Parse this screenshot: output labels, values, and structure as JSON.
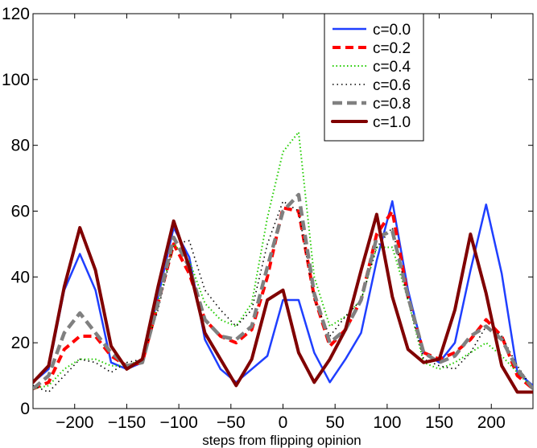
{
  "chart_data": {
    "type": "line",
    "title": "",
    "xlabel": "steps from flipping opinion",
    "ylabel": "",
    "xlim": [
      -240,
      240
    ],
    "ylim": [
      0,
      120
    ],
    "grid": false,
    "legend_position": "top-right",
    "xticks": [
      -200,
      -150,
      -100,
      -50,
      0,
      50,
      100,
      150,
      200
    ],
    "xtick_labels": [
      "−200",
      "−150",
      "−100",
      "−50",
      "0",
      "50",
      "100",
      "150",
      "200"
    ],
    "yticks": [
      0,
      20,
      40,
      60,
      80,
      100,
      120
    ],
    "ytick_labels": [
      "0",
      "20",
      "40",
      "60",
      "80",
      "100",
      "120"
    ],
    "x": [
      -240,
      -225,
      -210,
      -195,
      -180,
      -165,
      -150,
      -135,
      -120,
      -105,
      -90,
      -75,
      -60,
      -45,
      -30,
      -15,
      0,
      15,
      30,
      45,
      60,
      75,
      90,
      105,
      120,
      135,
      150,
      165,
      180,
      195,
      210,
      225,
      240
    ],
    "series": [
      {
        "name": "c=0.0",
        "color": "#1f3fff",
        "style": "solid",
        "values": [
          8,
          12,
          36,
          47,
          36,
          14,
          12,
          14,
          34,
          55,
          46,
          21,
          12,
          8,
          12,
          16,
          33,
          33,
          17,
          8,
          15,
          23,
          45,
          63,
          36,
          17,
          14,
          20,
          42,
          62,
          41,
          11,
          7
        ]
      },
      {
        "name": "c=0.2",
        "color": "#ff0000",
        "style": "dash",
        "values": [
          6,
          8,
          18,
          22,
          22,
          16,
          13,
          14,
          32,
          50,
          41,
          27,
          22,
          20,
          24,
          40,
          61,
          60,
          34,
          19,
          24,
          33,
          53,
          60,
          34,
          17,
          15,
          17,
          21,
          27,
          22,
          10,
          6
        ]
      },
      {
        "name": "c=0.4",
        "color": "#22cc00",
        "style": "dot",
        "values": [
          6,
          7,
          12,
          15,
          15,
          13,
          13,
          15,
          32,
          50,
          45,
          32,
          27,
          25,
          32,
          58,
          78,
          84,
          40,
          25,
          28,
          33,
          49,
          49,
          33,
          14,
          12,
          14,
          17,
          20,
          16,
          11,
          6
        ]
      },
      {
        "name": "c=0.6",
        "color": "#000000",
        "style": "sparse-dot",
        "values": [
          7,
          5,
          10,
          15,
          14,
          11,
          14,
          15,
          30,
          50,
          51,
          36,
          30,
          25,
          30,
          50,
          63,
          60,
          33,
          22,
          28,
          33,
          49,
          55,
          33,
          15,
          13,
          12,
          17,
          25,
          22,
          13,
          6
        ]
      },
      {
        "name": "c=0.8",
        "color": "#808080",
        "style": "wide-dash",
        "values": [
          6,
          10,
          23,
          29,
          23,
          17,
          13,
          14,
          32,
          52,
          43,
          27,
          22,
          21,
          25,
          43,
          60,
          65,
          35,
          20,
          24,
          33,
          52,
          54,
          34,
          17,
          14,
          16,
          22,
          25,
          21,
          12,
          6
        ]
      },
      {
        "name": "c=1.0",
        "color": "#800000",
        "style": "thick-solid",
        "values": [
          8,
          13,
          37,
          55,
          42,
          19,
          12,
          15,
          37,
          57,
          43,
          23,
          15,
          7,
          15,
          33,
          36,
          17,
          8,
          15,
          24,
          42,
          59,
          34,
          18,
          14,
          15,
          30,
          53,
          35,
          13,
          5,
          5
        ]
      }
    ]
  }
}
